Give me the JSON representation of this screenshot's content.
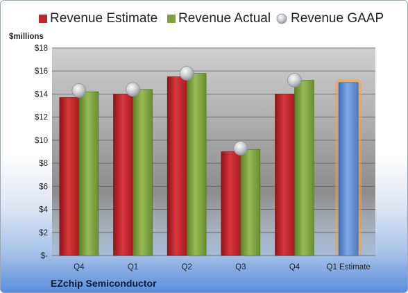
{
  "company_label": "EZchip Semiconductor",
  "chart_data": {
    "type": "bar",
    "ylabel": "$millions",
    "ylim": [
      0,
      18
    ],
    "y_ticks": [
      0,
      2,
      4,
      6,
      8,
      10,
      12,
      14,
      16,
      18
    ],
    "y_tick_labels": [
      "$-",
      "$2",
      "$4",
      "$6",
      "$8",
      "$10",
      "$12",
      "$14",
      "$16",
      "$18"
    ],
    "categories": [
      "Q4",
      "Q1",
      "Q2",
      "Q3",
      "Q4",
      "Q1 Estimate"
    ],
    "series": [
      {
        "name": "Revenue Estimate",
        "values": [
          13.7,
          14.0,
          15.5,
          9.0,
          14.0,
          null
        ],
        "color": "#c0282d"
      },
      {
        "name": "Revenue Actual",
        "values": [
          14.2,
          14.4,
          15.8,
          9.2,
          15.2,
          null
        ],
        "color": "#7ea23f"
      },
      {
        "name": "Revenue GAAP",
        "values": [
          14.3,
          14.4,
          15.8,
          9.3,
          15.2,
          null
        ],
        "color": "#b8bcc2"
      }
    ],
    "estimate": {
      "category": "Q1 Estimate",
      "value": 15.0,
      "color": "#5b8fd6",
      "glow": "#f4a040"
    },
    "grid": true,
    "legend_position": "top"
  }
}
